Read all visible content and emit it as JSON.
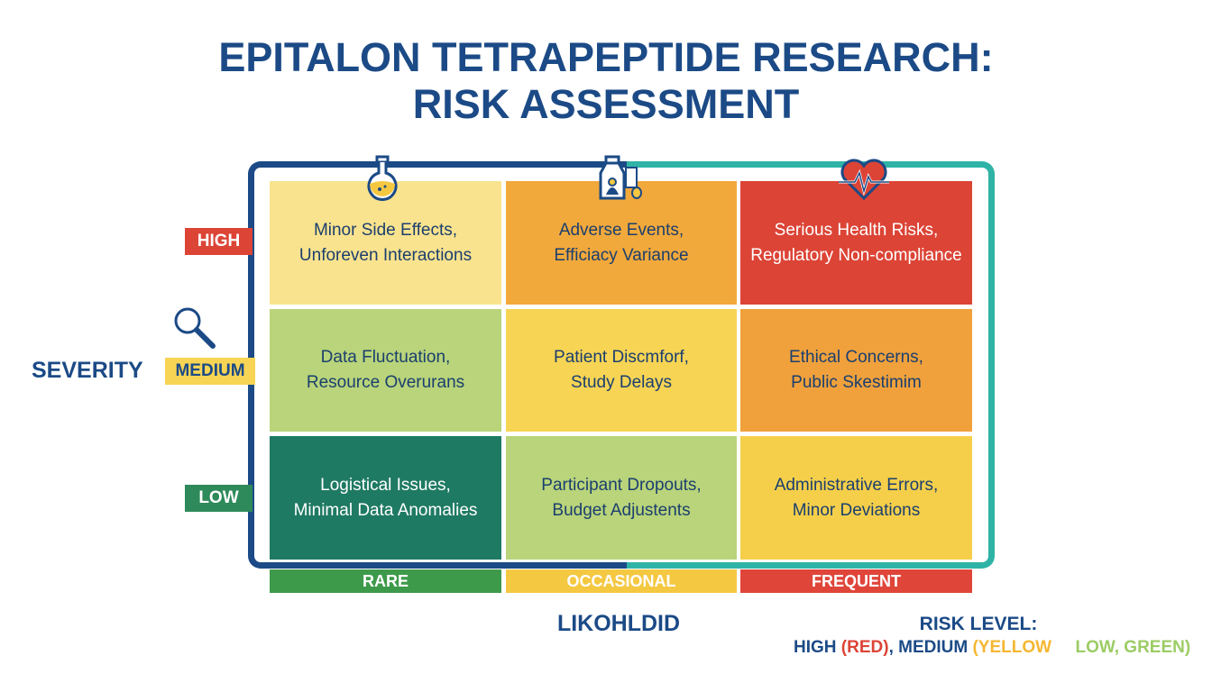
{
  "title": {
    "line1": "EPITALON TETRAPEPTIDE RESEARCH:",
    "line2": "RISK ASSESSMENT"
  },
  "axis": {
    "y_label": "SEVERITY",
    "x_label": "LIKOHLDID"
  },
  "rows": [
    {
      "label": "HIGH",
      "color": "#dc4436"
    },
    {
      "label": "MEDIUM",
      "color": "#f7d454"
    },
    {
      "label": "LOW",
      "color": "#2e8a5a"
    }
  ],
  "columns": [
    {
      "label": "RARE",
      "color": "#3e9a4b"
    },
    {
      "label": "OCCASIONAL",
      "color": "#f5c842"
    },
    {
      "label": "FREQUENT",
      "color": "#e0453a"
    }
  ],
  "cells": [
    [
      "Minor Side Effects,\nUnforeven Interactions",
      "Adverse Events,\nEfficiacy Variance",
      "Serious Health Risks,\nRegulatory Non-compliance"
    ],
    [
      "Data Fluctuation,\nResource Overurans",
      "Patient Discmforf,\nStudy Delays",
      "Ethical Concerns,\nPublic Skestimim"
    ],
    [
      "Logistical Issues,\nMinimal Data Anomalies",
      "Participant Dropouts,\nBudget Adjustents",
      "Administrative Errors,\nMinor Deviations"
    ]
  ],
  "legend": {
    "title": "RISK LEVEL:",
    "high": "HIGH",
    "red": "(RED)",
    "sep": ", MEDIUM",
    "yellow": "(YELLOW",
    "low": "LOW, GREEN)"
  }
}
